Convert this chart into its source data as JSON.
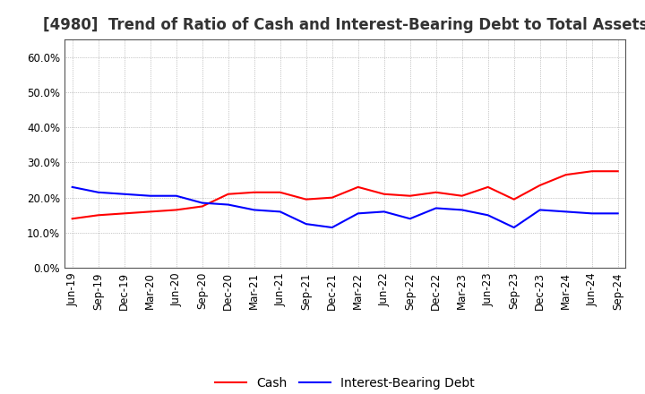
{
  "title": "[4980]  Trend of Ratio of Cash and Interest-Bearing Debt to Total Assets",
  "labels": [
    "Jun-19",
    "Sep-19",
    "Dec-19",
    "Mar-20",
    "Jun-20",
    "Sep-20",
    "Dec-20",
    "Mar-21",
    "Jun-21",
    "Sep-21",
    "Dec-21",
    "Mar-22",
    "Jun-22",
    "Sep-22",
    "Dec-22",
    "Mar-23",
    "Jun-23",
    "Sep-23",
    "Dec-23",
    "Mar-24",
    "Jun-24",
    "Sep-24"
  ],
  "cash": [
    14.0,
    15.0,
    15.5,
    16.0,
    16.5,
    17.5,
    21.0,
    21.5,
    21.5,
    19.5,
    20.0,
    23.0,
    21.0,
    20.5,
    21.5,
    20.5,
    23.0,
    19.5,
    23.5,
    26.5,
    27.5,
    27.5
  ],
  "ibd": [
    23.0,
    21.5,
    21.0,
    20.5,
    20.5,
    18.5,
    18.0,
    16.5,
    16.0,
    12.5,
    11.5,
    15.5,
    16.0,
    14.0,
    17.0,
    16.5,
    15.0,
    11.5,
    16.5,
    16.0,
    15.5,
    15.5
  ],
  "cash_color": "#ff0000",
  "ibd_color": "#0000ff",
  "background_color": "#ffffff",
  "plot_bg_color": "#ffffff",
  "grid_color": "#999999",
  "ylim": [
    0,
    65
  ],
  "yticks": [
    0,
    10,
    20,
    30,
    40,
    50,
    60
  ],
  "legend_cash": "Cash",
  "legend_ibd": "Interest-Bearing Debt",
  "title_fontsize": 12,
  "tick_fontsize": 8.5,
  "legend_fontsize": 10,
  "linewidth": 1.5
}
